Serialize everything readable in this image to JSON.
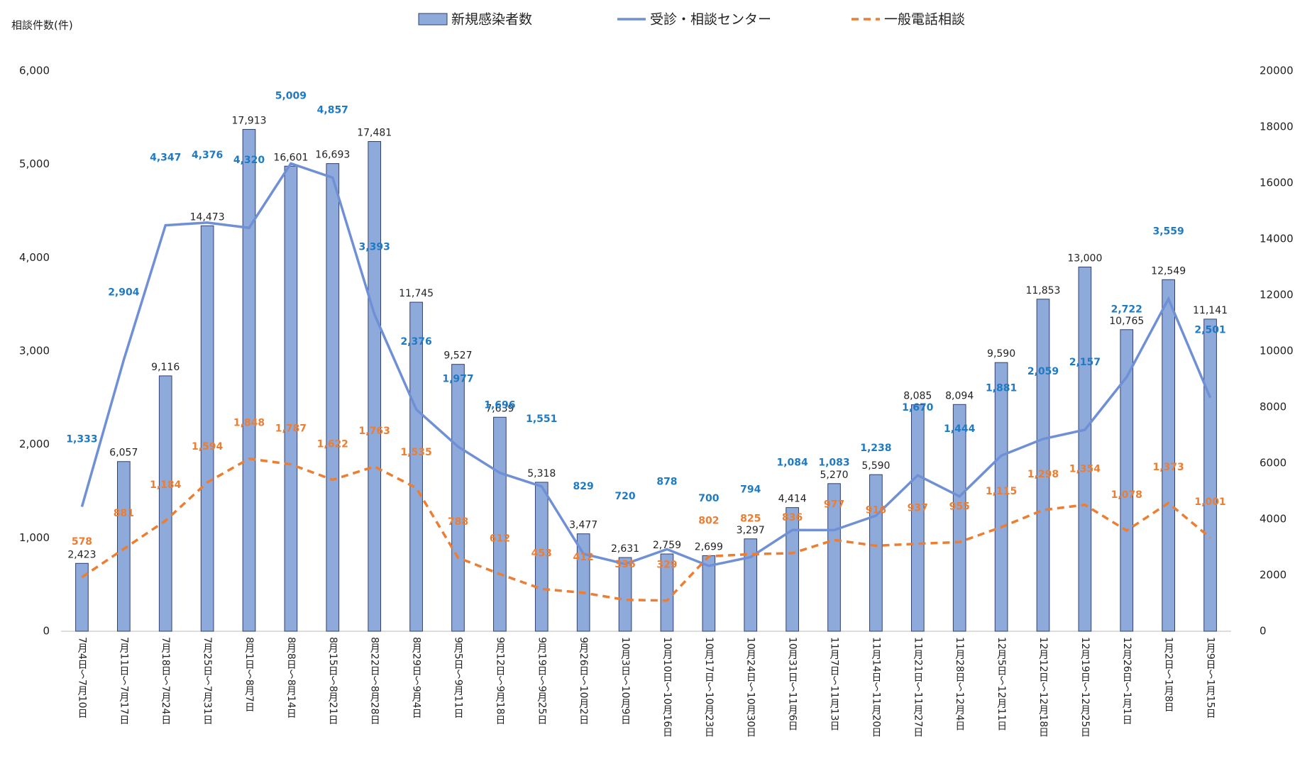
{
  "chart_data": {
    "type": "combo",
    "y_label": "相談件数(件)",
    "categories": [
      "7月4日～7月10日",
      "7月11日～7月17日",
      "7月18日～7月24日",
      "7月25日～7月31日",
      "8月1日～8月7日",
      "8月8日～8月14日",
      "8月15日～8月21日",
      "8月22日～8月28日",
      "8月29日～9月4日",
      "9月5日～9月11日",
      "9月12日～9月18日",
      "9月19日～9月25日",
      "9月26日～10月2日",
      "10月3日～10月9日",
      "10月10日～10月16日",
      "10月17日～10月23日",
      "10月24日～10月30日",
      "10月31日～11月6日",
      "11月7日～11月13日",
      "11月14日～11月20日",
      "11月21日～11月27日",
      "11月28日～12月4日",
      "12月5日～12月11日",
      "12月12日～12月18日",
      "12月19日～12月25日",
      "12月26日～1月1日",
      "1月2日～1月8日",
      "1月9日～1月15日"
    ],
    "series": [
      {
        "name": "新規感染者数",
        "kind": "bar",
        "axis": "y2",
        "color": "#8eaadb",
        "values": [
          2423,
          6057,
          9116,
          14473,
          17913,
          16601,
          16693,
          17481,
          11745,
          9527,
          7639,
          5318,
          3477,
          2631,
          2759,
          2699,
          3297,
          4414,
          5270,
          5590,
          8085,
          8094,
          9590,
          11853,
          13000,
          10765,
          12549,
          11141
        ],
        "value_labels": [
          "2,423",
          "6,057",
          "9,116",
          "14,473",
          "17,913",
          "16,601",
          "16,693",
          "17,481",
          "11,745",
          "9,527",
          "7,639",
          "5,318",
          "3,477",
          "2,631",
          "2,759",
          "2,699",
          "3,297",
          "4,414",
          "5,270",
          "5,590",
          "8,085",
          "8,094",
          "9,590",
          "11,853",
          "13,000",
          "10,765",
          "12,549",
          "11,141"
        ]
      },
      {
        "name": "受診・相談センター",
        "kind": "line",
        "color": "#6f8fd6",
        "label_color": "#1f7ac4",
        "values": [
          1333,
          2904,
          4347,
          4376,
          4320,
          5009,
          4857,
          3393,
          2376,
          1977,
          1696,
          1551,
          829,
          720,
          878,
          700,
          794,
          1084,
          1083,
          1238,
          1670,
          1444,
          1881,
          2059,
          2157,
          2722,
          3559,
          2501
        ],
        "value_labels": [
          "1,333",
          "2,904",
          "4,347",
          "4,376",
          "4,320",
          "5,009",
          "4,857",
          "3,393",
          "2,376",
          "1,977",
          "1,696",
          "1,551",
          "829",
          "720",
          "878",
          "700",
          "794",
          "1,084",
          "1,083",
          "1,238",
          "1,670",
          "1,444",
          "1,881",
          "2,059",
          "2,157",
          "2,722",
          "3,559",
          "2,501"
        ]
      },
      {
        "name": "一般電話相談",
        "kind": "dashed",
        "color": "#ed7d31",
        "label_color": "#ed7d31",
        "values": [
          578,
          881,
          1184,
          1594,
          1848,
          1787,
          1622,
          1763,
          1535,
          788,
          612,
          453,
          412,
          336,
          329,
          802,
          825,
          836,
          977,
          916,
          937,
          955,
          1115,
          1298,
          1354,
          1078,
          1373,
          1001
        ],
        "value_labels": [
          "578",
          "881",
          "1,184",
          "1,594",
          "1,848",
          "1,787",
          "1,622",
          "1,763",
          "1,535",
          "788",
          "612",
          "453",
          "412",
          "336",
          "329",
          "802",
          "825",
          "836",
          "977",
          "916",
          "937",
          "955",
          "1,115",
          "1,298",
          "1,354",
          "1,078",
          "1,373",
          "1,001"
        ]
      }
    ],
    "ylim": [
      0,
      6000
    ],
    "yticks": [
      0,
      {
        "value": 1000,
        "label": "1,000"
      },
      {
        "value": 2000,
        "label": "2,000"
      },
      {
        "value": 3000,
        "label": "3,000"
      },
      {
        "value": 4000,
        "label": "4,000"
      },
      {
        "value": 5000,
        "label": "5,000"
      },
      {
        "value": 6000,
        "label": "6,000"
      }
    ],
    "y2lim": [
      0,
      20000
    ],
    "y2ticks": [
      0,
      2000,
      4000,
      6000,
      8000,
      10000,
      12000,
      14000,
      16000,
      18000,
      20000
    ]
  }
}
